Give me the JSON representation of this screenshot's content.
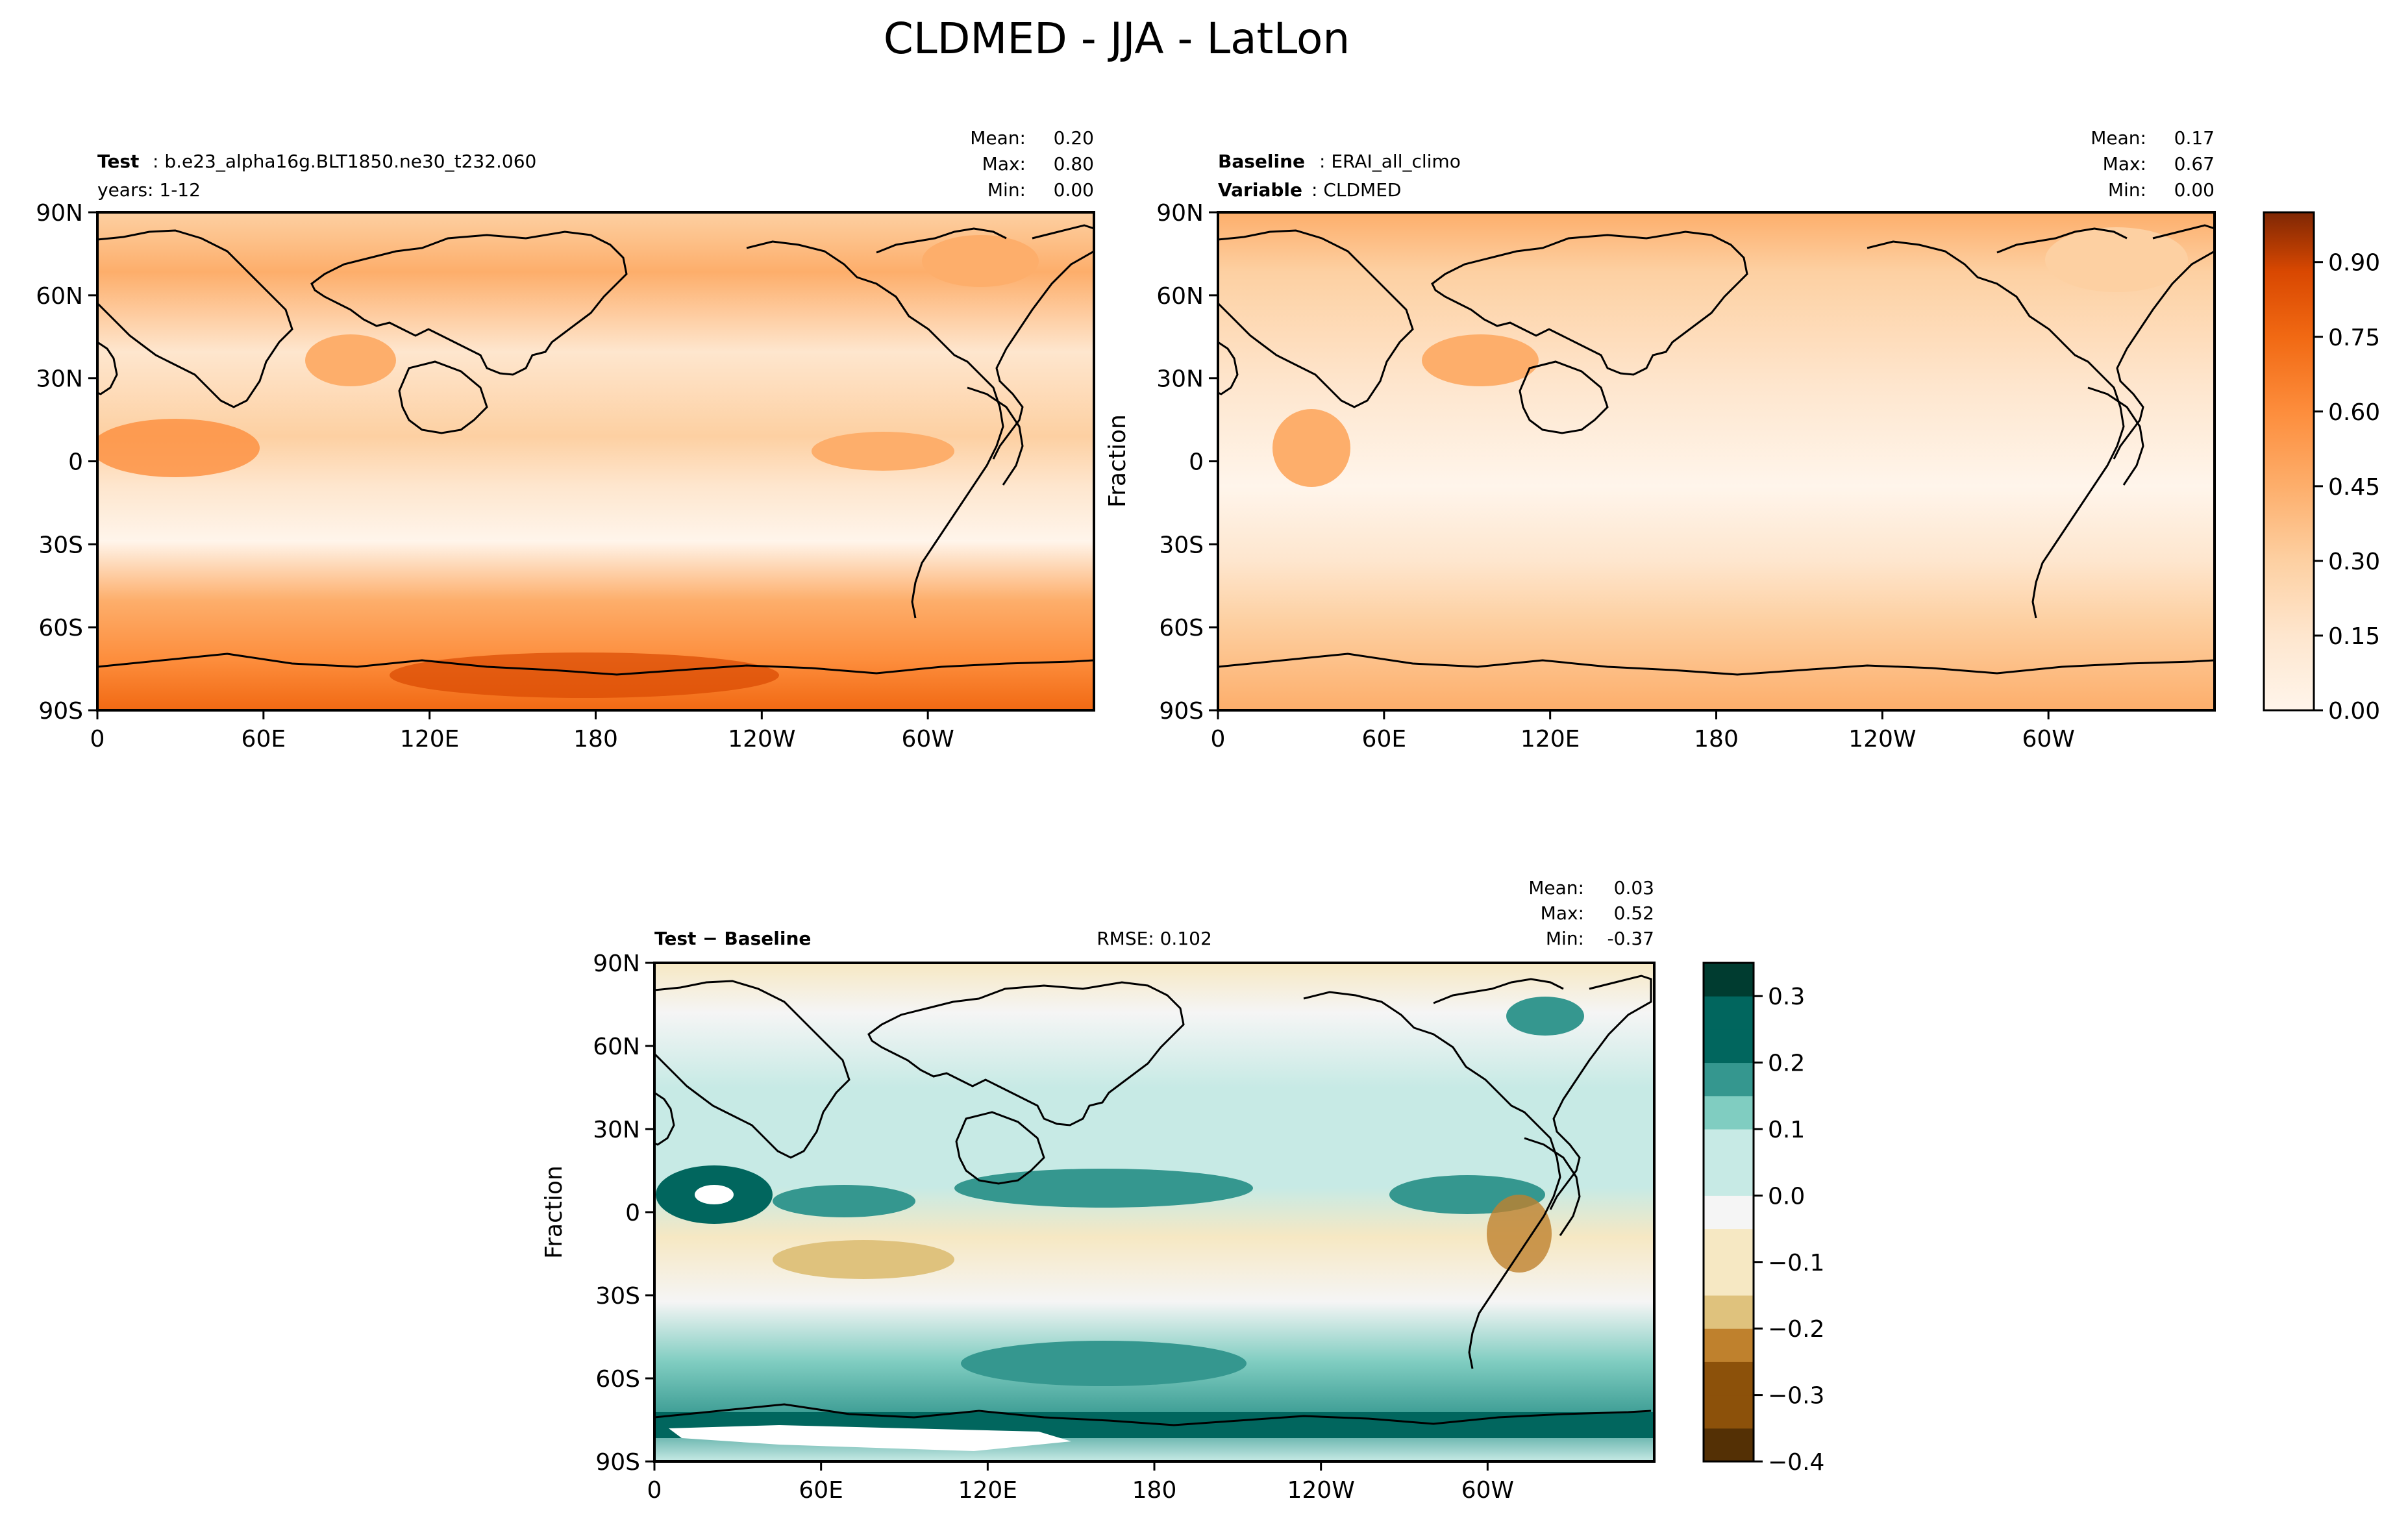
{
  "figure": {
    "title": "CLDMED - JJA - LatLon"
  },
  "panels": {
    "test": {
      "left_bold": "Test",
      "left_value": ": b.e23_alpha16g.BLT1850.ne30_t232.060",
      "left_line2": "years: 1-12",
      "stats": {
        "mean_label": "Mean:",
        "mean": "0.20",
        "max_label": "Max:",
        "max": "0.80",
        "min_label": "Min:",
        "min": "0.00"
      }
    },
    "baseline": {
      "left_bold": "Baseline",
      "left_value": ": ERAI_all_climo",
      "left_bold2": "Variable",
      "left_value2": ": CLDMED",
      "ylabel": "Fraction",
      "stats": {
        "mean_label": "Mean:",
        "mean": "0.17",
        "max_label": "Max:",
        "max": "0.67",
        "min_label": "Min:",
        "min": "0.00"
      }
    },
    "diff": {
      "left_bold": "Test − Baseline",
      "center": "RMSE: 0.102",
      "ylabel": "Fraction",
      "stats": {
        "mean_label": "Mean:",
        "mean": "0.03",
        "max_label": "Max:",
        "max": "0.52",
        "min_label": "Min:",
        "min": "-0.37"
      }
    }
  },
  "chart_data": [
    {
      "type": "heatmap",
      "panel": "test",
      "x_ticks": [
        "0",
        "60E",
        "120E",
        "180",
        "120W",
        "60W"
      ],
      "y_ticks": [
        "90N",
        "60N",
        "30N",
        "0",
        "30S",
        "60S",
        "90S"
      ],
      "mean": 0.2,
      "max": 0.8,
      "min": 0.0,
      "colormap": "Oranges",
      "colorbar": {
        "ticks": [
          "0.00",
          "0.15",
          "0.30",
          "0.45",
          "0.60",
          "0.75",
          "0.90"
        ],
        "range": [
          0.0,
          1.0
        ]
      }
    },
    {
      "type": "heatmap",
      "panel": "baseline",
      "x_ticks": [
        "0",
        "60E",
        "120E",
        "180",
        "120W",
        "60W"
      ],
      "y_ticks": [
        "90N",
        "60N",
        "30N",
        "0",
        "30S",
        "60S",
        "90S"
      ],
      "ylabel": "Fraction",
      "mean": 0.17,
      "max": 0.67,
      "min": 0.0,
      "colormap": "Oranges"
    },
    {
      "type": "heatmap",
      "panel": "diff",
      "x_ticks": [
        "0",
        "60E",
        "120E",
        "180",
        "120W",
        "60W"
      ],
      "y_ticks": [
        "90N",
        "60N",
        "30N",
        "0",
        "30S",
        "60S",
        "90S"
      ],
      "ylabel": "Fraction",
      "mean": 0.03,
      "max": 0.52,
      "min": -0.37,
      "rmse": 0.102,
      "colormap": "BrBG",
      "colorbar": {
        "ticks": [
          "0.3",
          "0.2",
          "0.1",
          "0.0",
          "−0.1",
          "−0.2",
          "−0.3",
          "−0.4"
        ],
        "range": [
          -0.4,
          0.35
        ]
      }
    }
  ],
  "colors": {
    "oranges": [
      "#fff5eb",
      "#fee6ce",
      "#fdd0a2",
      "#fdae6b",
      "#fd8d3c",
      "#f16913",
      "#d94801",
      "#a63603",
      "#7f2704"
    ],
    "brbg": [
      "#543005",
      "#8c510a",
      "#bf812d",
      "#dfc27d",
      "#f6e8c3",
      "#f5f5f5",
      "#c7eae5",
      "#80cdc1",
      "#35978f",
      "#01665e",
      "#003c30"
    ]
  }
}
